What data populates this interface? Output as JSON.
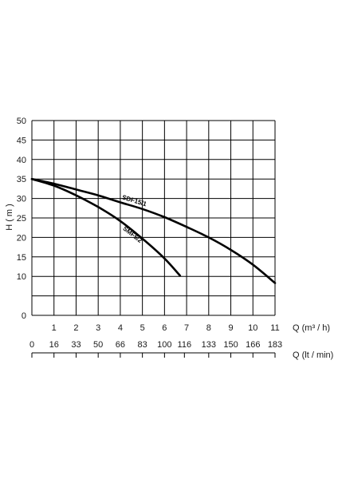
{
  "chart_data": {
    "type": "line",
    "ylabel": "H ( m )",
    "xlabel": "Q (m³ / h)",
    "xlabel_secondary": "Q (lt / min)",
    "xlim": [
      0,
      11
    ],
    "ylim": [
      0,
      50
    ],
    "x_ticks": [
      "1",
      "2",
      "3",
      "4",
      "5",
      "6",
      "7",
      "8",
      "9",
      "10",
      "11"
    ],
    "y_ticks": [
      "0",
      "10",
      "15",
      "20",
      "25",
      "30",
      "35",
      "40",
      "45",
      "50"
    ],
    "secondary_ticks": [
      {
        "x": 0,
        "label": "0"
      },
      {
        "x": 1,
        "label": "16"
      },
      {
        "x": 2,
        "label": "33"
      },
      {
        "x": 3,
        "label": "50"
      },
      {
        "x": 4,
        "label": "66"
      },
      {
        "x": 5,
        "label": "83"
      },
      {
        "x": 6,
        "label": "100"
      },
      {
        "x": 6.9,
        "label": "116"
      },
      {
        "x": 8,
        "label": "133"
      },
      {
        "x": 9,
        "label": "150"
      },
      {
        "x": 10,
        "label": "166"
      },
      {
        "x": 11,
        "label": "183"
      }
    ],
    "grid": true,
    "series": [
      {
        "name": "SDF15/1",
        "x": [
          0,
          1,
          2,
          3,
          4,
          5,
          6,
          7,
          8,
          9,
          10,
          11
        ],
        "y": [
          35,
          33.8,
          32.3,
          30.8,
          29,
          27.3,
          25.2,
          22.7,
          20,
          16.8,
          13,
          8.3
        ]
      },
      {
        "name": "SMF5/2",
        "x": [
          0,
          1,
          2,
          3,
          4,
          5,
          6,
          6.7
        ],
        "y": [
          35,
          33.3,
          30.8,
          27.8,
          24.2,
          19.7,
          14.6,
          10.2
        ]
      }
    ]
  }
}
